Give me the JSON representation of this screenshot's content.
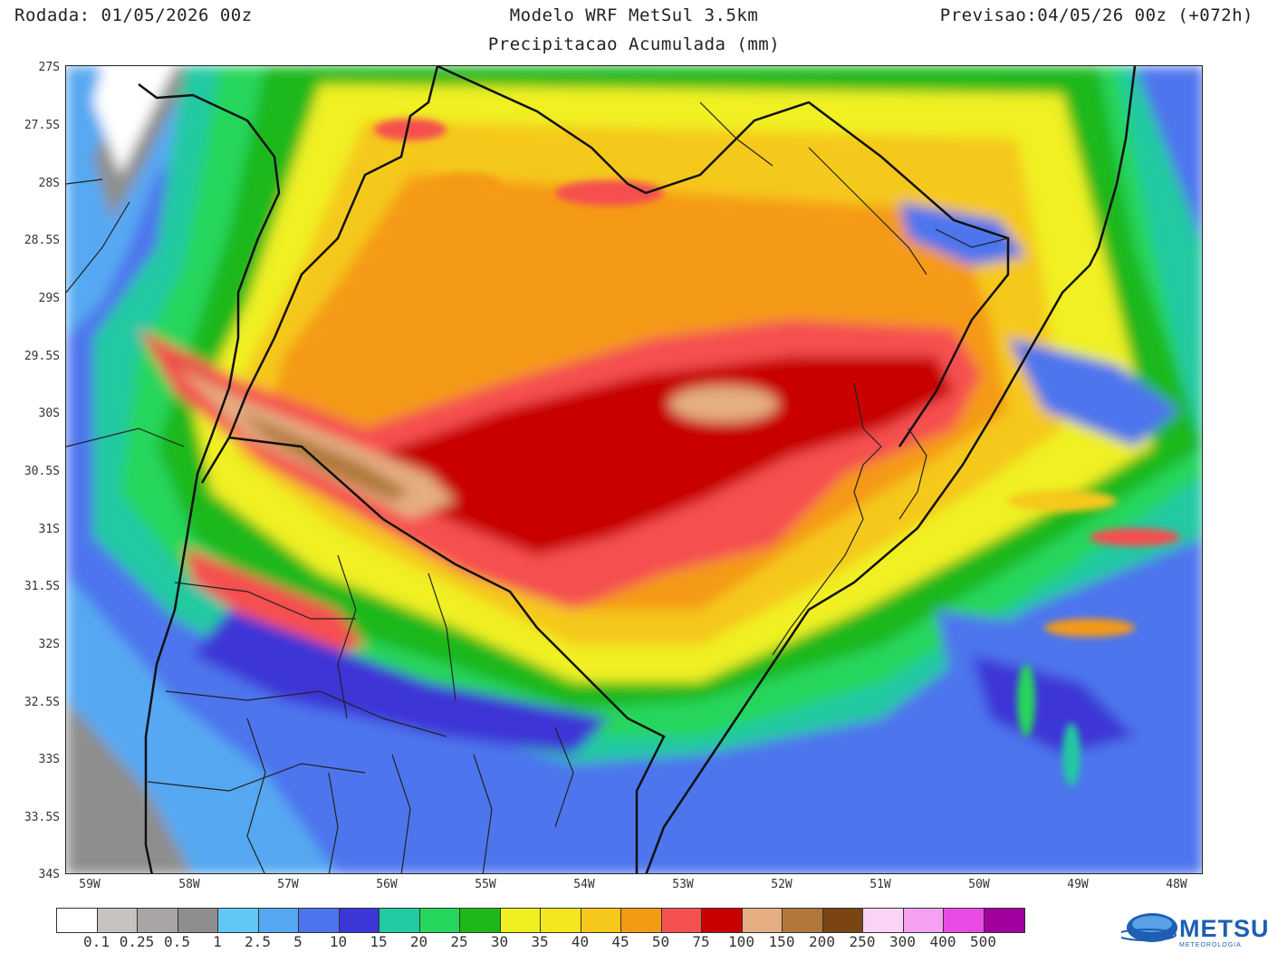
{
  "header": {
    "run": "Rodada: 01/05/2026 00z",
    "model": "Modelo WRF MetSul 3.5km",
    "forecast": "Previsao:04/05/26 00z (+072h)",
    "variable": "Precipitacao Acumulada (mm)"
  },
  "axes": {
    "lat_labels": [
      "27S",
      "27.5S",
      "28S",
      "28.5S",
      "29S",
      "29.5S",
      "30S",
      "30.5S",
      "31S",
      "31.5S",
      "32S",
      "32.5S",
      "33S",
      "33.5S",
      "34S"
    ],
    "lon_labels": [
      "59W",
      "58W",
      "57W",
      "56W",
      "55W",
      "54W",
      "53W",
      "52W",
      "51W",
      "50W",
      "49W",
      "48W"
    ]
  },
  "colorbar": {
    "labels": [
      "0.1",
      "0.25",
      "0.5",
      "1",
      "2.5",
      "5",
      "10",
      "15",
      "20",
      "25",
      "30",
      "35",
      "40",
      "45",
      "50",
      "75",
      "100",
      "150",
      "200",
      "250",
      "300",
      "400",
      "500"
    ],
    "colors": [
      "#ffffff",
      "#c8c2bf",
      "#aaa5a5",
      "#8e8e8e",
      "#5fc8f5",
      "#56a8f2",
      "#4d74ee",
      "#3c36d6",
      "#23c9a1",
      "#26d65c",
      "#1fb81a",
      "#f0f020",
      "#f5e61e",
      "#f5c81b",
      "#f59a14",
      "#f55050",
      "#c80000",
      "#e5ad82",
      "#b07838",
      "#7a4414",
      "#fbd3f5",
      "#f5a0f0",
      "#e84be4",
      "#a0009e"
    ]
  },
  "logo": {
    "name": "METSUL",
    "tagline": "METEOROLOGIA"
  }
}
